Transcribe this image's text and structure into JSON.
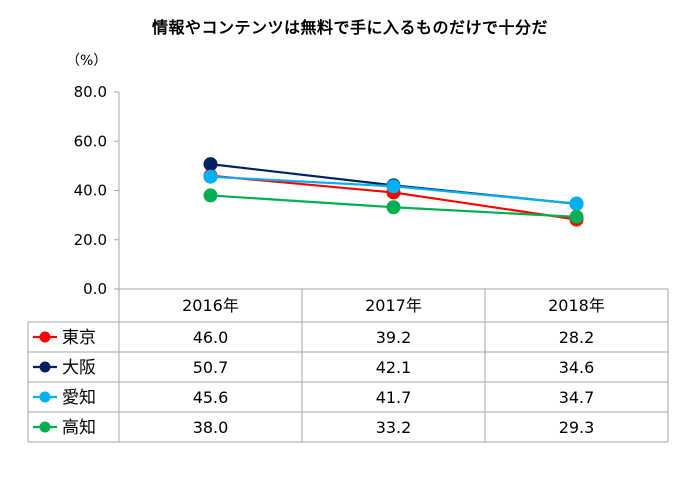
{
  "chart_data": {
    "type": "line",
    "title": "情報やコンテンツは無料で手に入るものだけで十分だ",
    "unit": "（%）",
    "categories": [
      "2016年",
      "2017年",
      "2018年"
    ],
    "yticks": [
      "80.0",
      "60.0",
      "40.0",
      "20.0",
      "0.0"
    ],
    "ylim": [
      0,
      80
    ],
    "ytick_values": [
      80,
      60,
      40,
      20,
      0
    ],
    "series": [
      {
        "name": "東京",
        "color": "#ff0000",
        "values": [
          46.0,
          39.2,
          28.2
        ],
        "labels": [
          "46.0",
          "39.2",
          "28.2"
        ]
      },
      {
        "name": "大阪",
        "color": "#002060",
        "values": [
          50.7,
          42.1,
          34.6
        ],
        "labels": [
          "50.7",
          "42.1",
          "34.6"
        ]
      },
      {
        "name": "愛知",
        "color": "#00b0f0",
        "values": [
          45.6,
          41.7,
          34.7
        ],
        "labels": [
          "45.6",
          "41.7",
          "34.7"
        ]
      },
      {
        "name": "高知",
        "color": "#00b050",
        "values": [
          38.0,
          33.2,
          29.3
        ],
        "labels": [
          "38.0",
          "33.2",
          "29.3"
        ]
      }
    ],
    "legend": "data-table-left"
  }
}
